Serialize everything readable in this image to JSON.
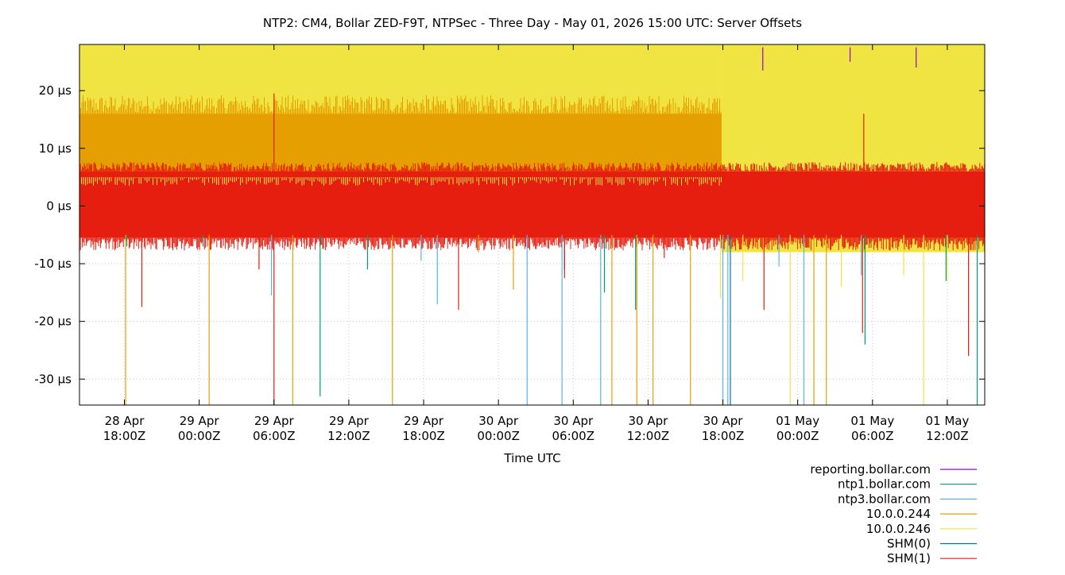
{
  "chart_data": {
    "type": "line",
    "title": "NTP2: CM4, Bollar ZED-F9T, NTPSec - Three Day - May 01, 2026 15:00 UTC: Server Offsets",
    "xlabel": "Time UTC",
    "ylabel": "",
    "x_range": [
      "2026-04-28T14:24:00Z",
      "2026-05-01T15:00:00Z"
    ],
    "ylim": [
      -34.5,
      28.0
    ],
    "y_unit": "µs",
    "grid": true,
    "legend_position": "bottom-right",
    "x_ticks": [
      {
        "time": "2026-04-28T18:00:00Z",
        "line1": "28 Apr",
        "line2": "18:00Z"
      },
      {
        "time": "2026-04-29T00:00:00Z",
        "line1": "29 Apr",
        "line2": "00:00Z"
      },
      {
        "time": "2026-04-29T06:00:00Z",
        "line1": "29 Apr",
        "line2": "06:00Z"
      },
      {
        "time": "2026-04-29T12:00:00Z",
        "line1": "29 Apr",
        "line2": "12:00Z"
      },
      {
        "time": "2026-04-29T18:00:00Z",
        "line1": "29 Apr",
        "line2": "18:00Z"
      },
      {
        "time": "2026-04-30T00:00:00Z",
        "line1": "30 Apr",
        "line2": "00:00Z"
      },
      {
        "time": "2026-04-30T06:00:00Z",
        "line1": "30 Apr",
        "line2": "06:00Z"
      },
      {
        "time": "2026-04-30T12:00:00Z",
        "line1": "30 Apr",
        "line2": "12:00Z"
      },
      {
        "time": "2026-04-30T18:00:00Z",
        "line1": "30 Apr",
        "line2": "18:00Z"
      },
      {
        "time": "2026-05-01T00:00:00Z",
        "line1": "01 May",
        "line2": "00:00Z"
      },
      {
        "time": "2026-05-01T06:00:00Z",
        "line1": "01 May",
        "line2": "06:00Z"
      },
      {
        "time": "2026-05-01T12:00:00Z",
        "line1": "01 May",
        "line2": "12:00Z"
      }
    ],
    "y_ticks": [
      {
        "value": 20,
        "label": "20 µs"
      },
      {
        "value": 10,
        "label": "10 µs"
      },
      {
        "value": 0,
        "label": "0 µs"
      },
      {
        "value": -10,
        "label": "-10 µs"
      },
      {
        "value": -20,
        "label": "-20 µs"
      },
      {
        "value": -30,
        "label": "-30 µs"
      }
    ],
    "series": [
      {
        "name": "reporting.bollar.com",
        "color": "#9400d3",
        "spikes": [
          [
            "2026-04-30T21:12:00Z",
            27.5,
            23.5
          ],
          [
            "2026-05-01T09:30:00Z",
            27.5,
            24.0
          ],
          [
            "2026-05-01T04:12:00Z",
            27.5,
            25.0
          ]
        ]
      },
      {
        "name": "ntp1.bollar.com",
        "color": "#009e73",
        "spikes": [
          [
            "2026-04-29T00:18:00Z",
            -5,
            -7
          ],
          [
            "2026-04-29T09:42:00Z",
            -5,
            -33.0
          ],
          [
            "2026-04-30T08:30:00Z",
            -5,
            -15.0
          ],
          [
            "2026-04-30T11:00:00Z",
            -5,
            -18.0
          ],
          [
            "2026-05-01T05:24:00Z",
            -5,
            -24.0
          ],
          [
            "2026-05-01T14:24:00Z",
            -5,
            -34.5
          ],
          [
            "2026-04-29T13:30:00Z",
            -5,
            -11.0
          ],
          [
            "2026-04-28T18:12:00Z",
            -5,
            -7.0
          ],
          [
            "2026-05-01T11:54:00Z",
            -5,
            -13.0
          ]
        ]
      },
      {
        "name": "ntp3.bollar.com",
        "color": "#56b4e9",
        "spikes": [
          [
            "2026-04-29T05:48:00Z",
            -5,
            -15.5
          ],
          [
            "2026-04-29T19:06:00Z",
            -5,
            -17.0
          ],
          [
            "2026-04-30T02:18:00Z",
            -5,
            -34.5
          ],
          [
            "2026-04-30T05:06:00Z",
            -5,
            -34.5
          ],
          [
            "2026-04-30T08:12:00Z",
            -5,
            -34.5
          ],
          [
            "2026-04-30T18:00:00Z",
            -5,
            -34.5
          ],
          [
            "2026-04-30T18:24:00Z",
            -5,
            -34.5
          ],
          [
            "2026-05-01T00:30:00Z",
            -5,
            -34.5
          ],
          [
            "2026-04-30T22:30:00Z",
            -5,
            -10.5
          ],
          [
            "2026-05-01T05:06:00Z",
            -5,
            -12.0
          ],
          [
            "2026-04-29T17:48:00Z",
            -5,
            -9.5
          ]
        ]
      },
      {
        "name": "10.0.0.244",
        "color": "#e69f00",
        "spikes": [
          [
            "2026-04-28T18:06:00Z",
            -5,
            -34.5
          ],
          [
            "2026-04-29T00:48:00Z",
            -5,
            -34.5
          ],
          [
            "2026-04-29T07:30:00Z",
            -5,
            -34.5
          ],
          [
            "2026-04-29T15:30:00Z",
            -5,
            -34.5
          ],
          [
            "2026-04-30T09:06:00Z",
            -5,
            -34.5
          ],
          [
            "2026-04-30T11:06:00Z",
            -5,
            -34.5
          ],
          [
            "2026-04-30T12:24:00Z",
            -5,
            -34.5
          ],
          [
            "2026-04-30T15:24:00Z",
            -5,
            -34.5
          ],
          [
            "2026-05-01T01:18:00Z",
            -5,
            -34.5
          ],
          [
            "2026-05-01T02:18:00Z",
            -5,
            -34.5
          ],
          [
            "2026-04-30T01:12:00Z",
            -5,
            -14.5
          ],
          [
            "2026-04-29T22:24:00Z",
            -5,
            -8.0
          ]
        ]
      },
      {
        "name": "10.0.0.246",
        "color": "#f0e442",
        "spikes": [
          [
            "2026-04-30T23:24:00Z",
            -5,
            -34.5
          ],
          [
            "2026-05-01T10:06:00Z",
            -5,
            -34.5
          ],
          [
            "2026-04-30T17:48:00Z",
            -5,
            -16.0
          ],
          [
            "2026-04-30T19:36:00Z",
            -5,
            -13.0
          ],
          [
            "2026-05-01T03:30:00Z",
            -5,
            -14.0
          ],
          [
            "2026-05-01T12:00:00Z",
            -5,
            -13.0
          ],
          [
            "2026-05-01T08:30:00Z",
            -5,
            -12.0
          ]
        ]
      },
      {
        "name": "SHM(0)",
        "color": "#0072b2",
        "spikes": [
          [
            "2026-04-30T18:36:00Z",
            -5,
            -34.5
          ],
          [
            "2026-04-30T05:18:00Z",
            -5,
            -11.0
          ]
        ]
      },
      {
        "name": "SHM(1)",
        "color": "#e51e10",
        "spikes": [
          [
            "2026-04-28T19:24:00Z",
            -5,
            -17.5
          ],
          [
            "2026-04-29T04:48:00Z",
            -5,
            -11.0
          ],
          [
            "2026-04-29T06:00:00Z",
            5,
            19.5
          ],
          [
            "2026-04-29T06:00:00Z",
            -5,
            -34.5
          ],
          [
            "2026-04-29T20:48:00Z",
            -5,
            -18.0
          ],
          [
            "2026-04-30T05:18:00Z",
            -5,
            -12.5
          ],
          [
            "2026-04-30T21:18:00Z",
            -5,
            -18.0
          ],
          [
            "2026-05-01T05:18:00Z",
            5,
            16.0
          ],
          [
            "2026-05-01T05:12:00Z",
            -5,
            -22.0
          ],
          [
            "2026-05-01T13:42:00Z",
            -5,
            -26.0
          ],
          [
            "2026-04-30T13:18:00Z",
            -5,
            -9.0
          ]
        ]
      }
    ],
    "bands": [
      {
        "series": "10.0.0.246",
        "from": "2026-04-28T14:24:00Z",
        "to": "2026-04-30T17:54:00Z",
        "low": 5,
        "high": 28
      },
      {
        "series": "10.0.0.246",
        "from": "2026-04-30T17:54:00Z",
        "to": "2026-05-01T15:00:00Z",
        "low": -8,
        "high": 28
      },
      {
        "series": "10.0.0.244",
        "from": "2026-04-28T14:24:00Z",
        "to": "2026-04-30T17:54:00Z",
        "low": 4.5,
        "high": 16
      },
      {
        "series": "SHM(1)",
        "from": "2026-04-28T14:24:00Z",
        "to": "2026-05-01T15:00:00Z",
        "low": -5.5,
        "high": 6
      }
    ]
  }
}
